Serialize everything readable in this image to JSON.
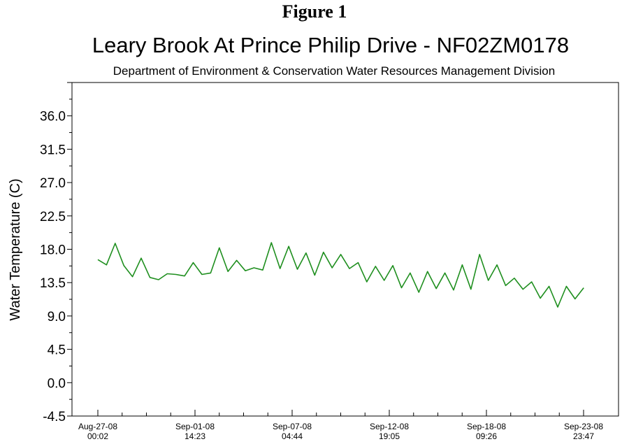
{
  "figure_label": "Figure 1",
  "chart_data": {
    "type": "line",
    "title": "Leary Brook At Prince Philip Drive - NF02ZM0178",
    "subtitle": "Department of Environment & Conservation Water Resources Management Division",
    "xlabel": "",
    "ylabel": "Water Temperature (C)",
    "ylim": [
      -4.5,
      40.5
    ],
    "y_ticks": [
      "-4.5",
      "0.0",
      "4.5",
      "9.0",
      "13.5",
      "18.0",
      "22.5",
      "27.0",
      "31.5",
      "36.0"
    ],
    "x_ticks": [
      {
        "date": "Aug-27-08",
        "time": "00:02"
      },
      {
        "date": "Sep-01-08",
        "time": "14:23"
      },
      {
        "date": "Sep-07-08",
        "time": "04:44"
      },
      {
        "date": "Sep-12-08",
        "time": "19:05"
      },
      {
        "date": "Sep-18-08",
        "time": "09:26"
      },
      {
        "date": "Sep-23-08",
        "time": "23:47"
      }
    ],
    "grid": false,
    "line_color": "#1f8f1f",
    "series": [
      {
        "x": [
          "2008-08-27 00:00",
          "2008-08-27 12:00",
          "2008-08-28 00:00",
          "2008-08-28 12:00",
          "2008-08-29 00:00",
          "2008-08-29 12:00",
          "2008-08-30 00:00",
          "2008-08-30 12:00",
          "2008-08-31 00:00",
          "2008-08-31 12:00",
          "2008-09-01 00:00",
          "2008-09-01 12:00",
          "2008-09-02 00:00",
          "2008-09-02 12:00",
          "2008-09-03 00:00",
          "2008-09-03 12:00",
          "2008-09-04 00:00",
          "2008-09-04 12:00",
          "2008-09-05 00:00",
          "2008-09-05 12:00",
          "2008-09-06 00:00",
          "2008-09-06 12:00",
          "2008-09-07 00:00",
          "2008-09-07 12:00",
          "2008-09-08 00:00",
          "2008-09-08 12:00",
          "2008-09-09 00:00",
          "2008-09-09 12:00",
          "2008-09-10 00:00",
          "2008-09-10 12:00",
          "2008-09-11 00:00",
          "2008-09-11 12:00",
          "2008-09-12 00:00",
          "2008-09-12 12:00",
          "2008-09-13 00:00",
          "2008-09-13 12:00",
          "2008-09-14 00:00",
          "2008-09-14 12:00",
          "2008-09-15 00:00",
          "2008-09-15 12:00",
          "2008-09-16 00:00",
          "2008-09-16 12:00",
          "2008-09-17 00:00",
          "2008-09-17 12:00",
          "2008-09-18 00:00",
          "2008-09-18 12:00",
          "2008-09-19 00:00",
          "2008-09-19 12:00",
          "2008-09-20 00:00",
          "2008-09-20 12:00",
          "2008-09-21 00:00",
          "2008-09-21 12:00",
          "2008-09-22 00:00",
          "2008-09-22 12:00",
          "2008-09-23 00:00",
          "2008-09-23 12:00",
          "2008-09-24 00:00"
        ],
        "values": [
          16.6,
          15.9,
          18.8,
          15.8,
          14.3,
          16.8,
          14.2,
          13.9,
          14.7,
          14.6,
          14.4,
          16.2,
          14.6,
          14.8,
          18.2,
          15.0,
          16.5,
          15.1,
          15.5,
          15.2,
          18.9,
          15.4,
          18.4,
          15.3,
          17.5,
          14.5,
          17.6,
          15.5,
          17.3,
          15.4,
          16.2,
          13.6,
          15.7,
          13.8,
          15.8,
          12.8,
          14.8,
          12.2,
          15.0,
          12.7,
          14.8,
          12.5,
          15.9,
          12.6,
          17.3,
          13.8,
          15.9,
          13.1,
          14.1,
          12.6,
          13.6,
          11.4,
          13.0,
          10.2,
          13.0,
          11.3,
          12.8
        ]
      }
    ]
  }
}
